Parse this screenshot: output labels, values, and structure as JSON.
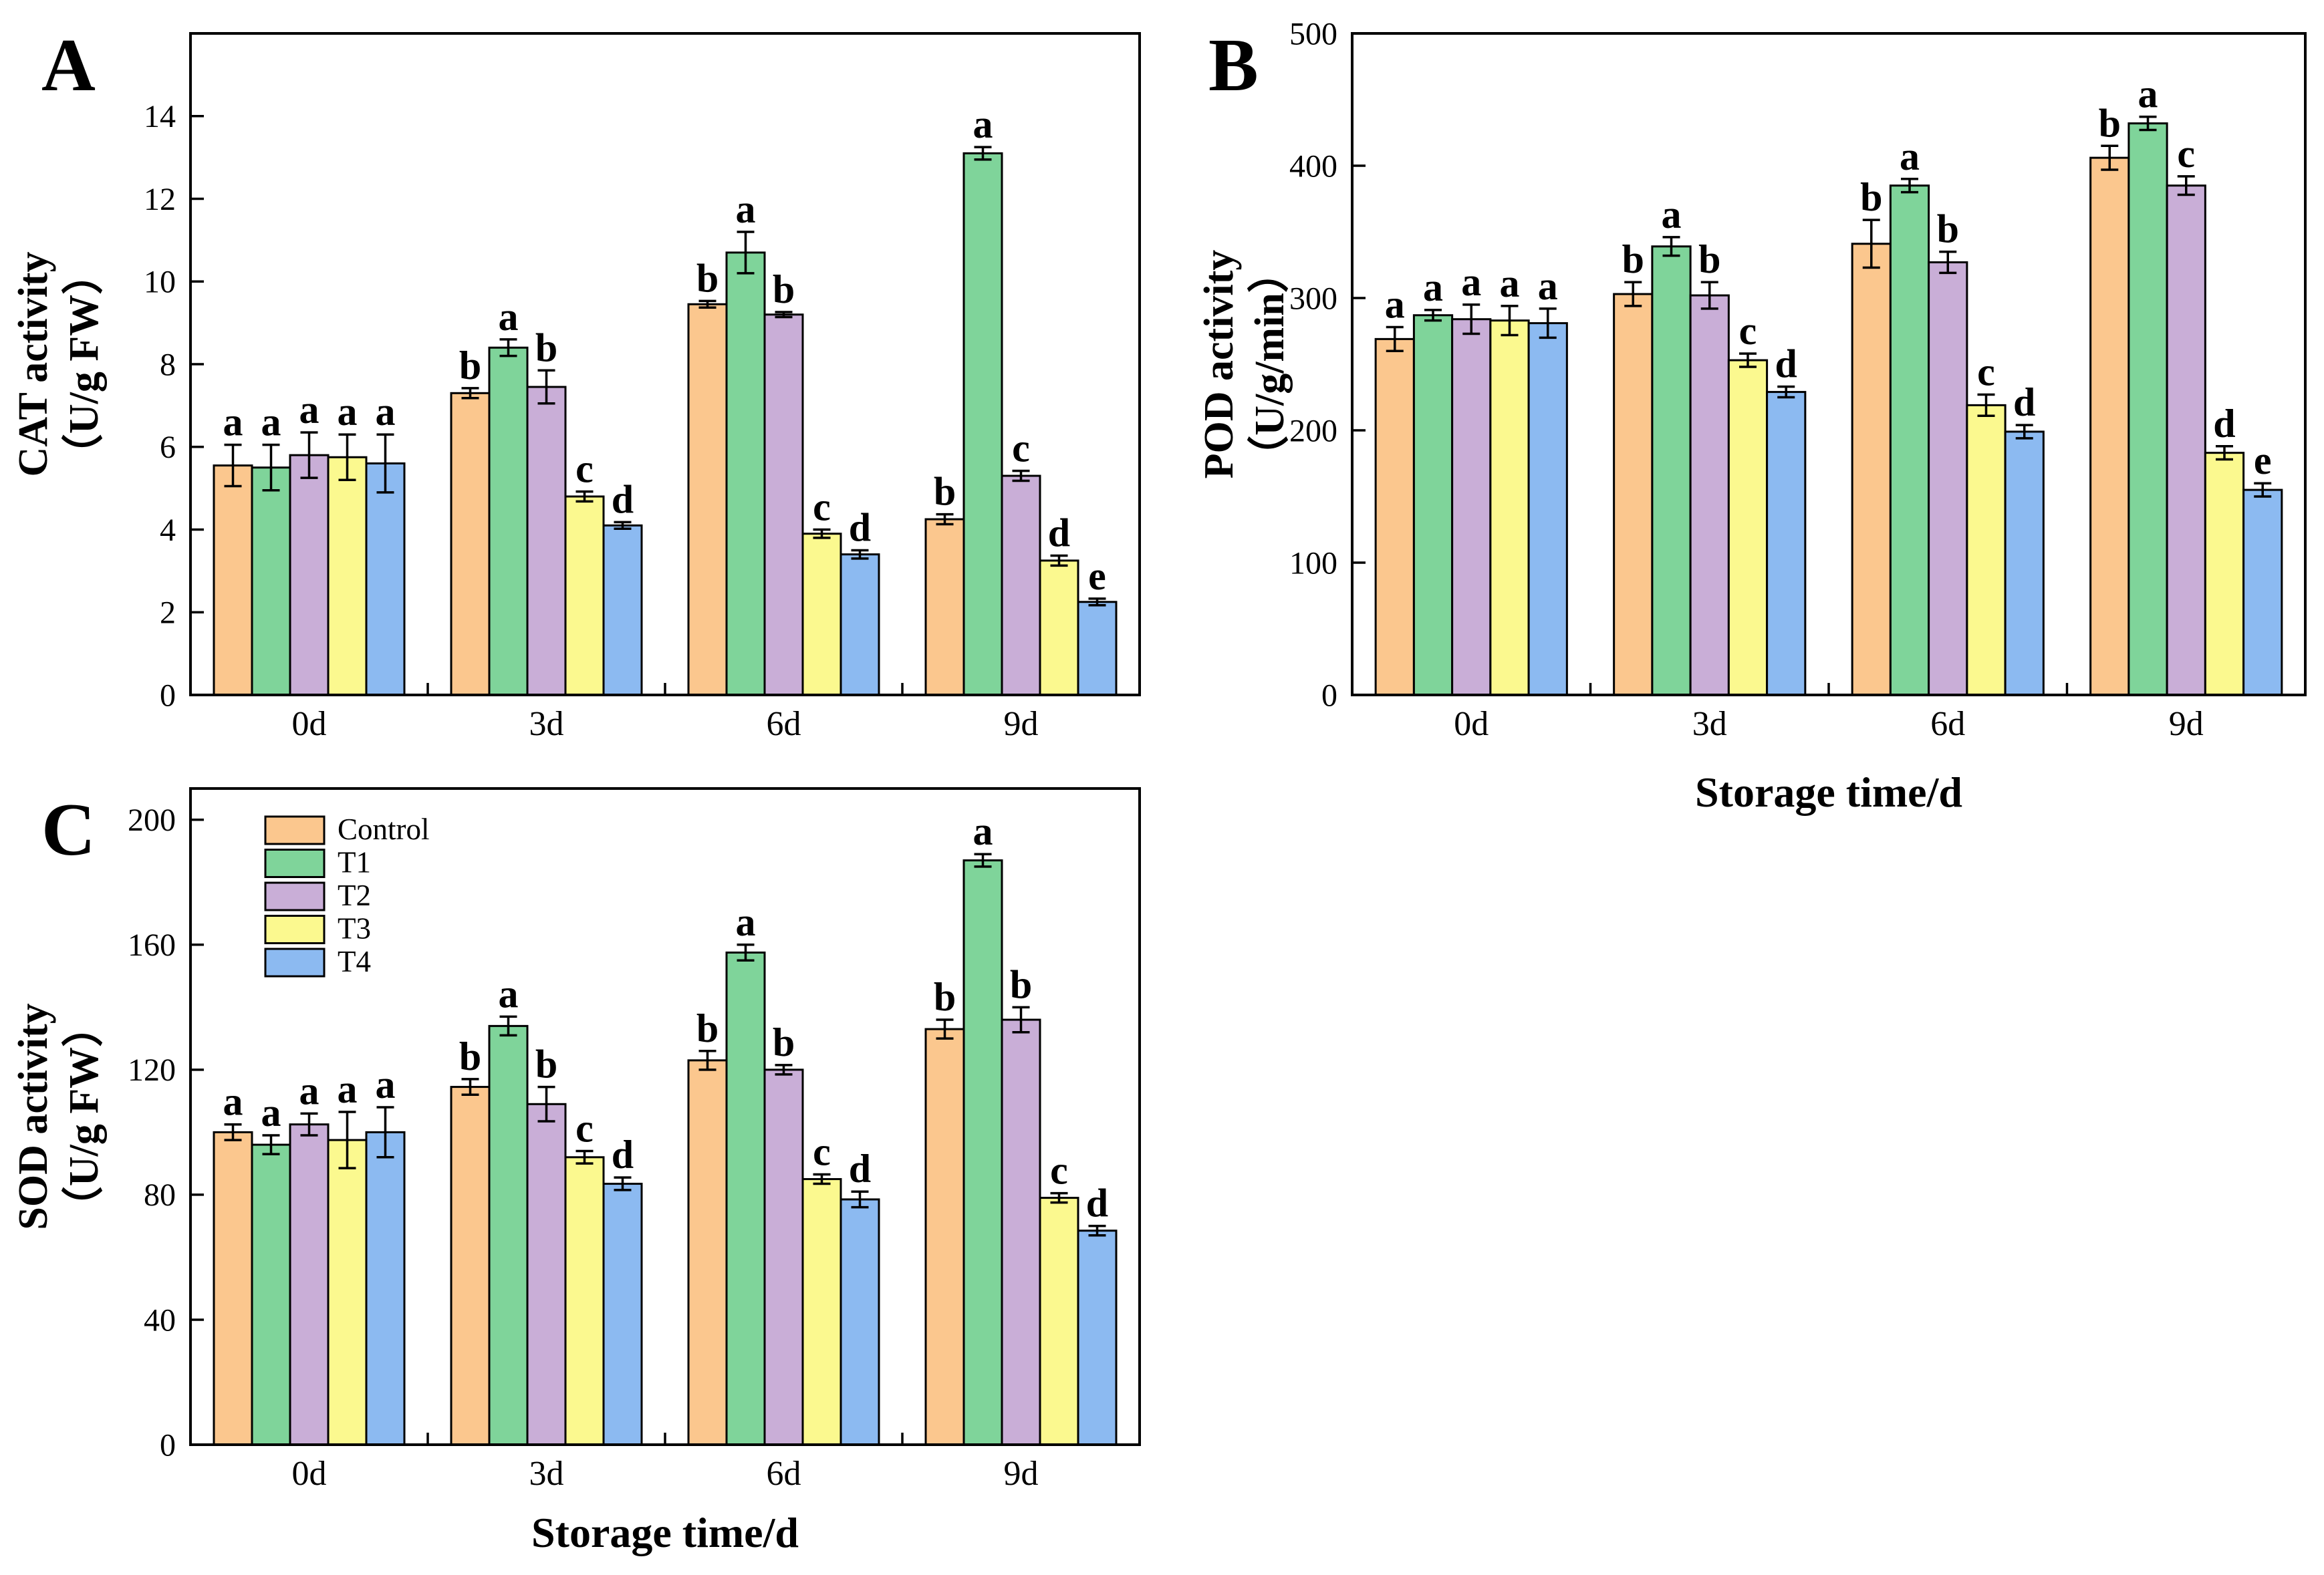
{
  "figure": {
    "background": "#ffffff",
    "ink_color": "#000000"
  },
  "legend": {
    "position": "top-left-of-panel-C",
    "items": [
      {
        "label": "Control",
        "color": "#FBC78E"
      },
      {
        "label": "T1",
        "color": "#7FD49A"
      },
      {
        "label": "T2",
        "color": "#C9AED7"
      },
      {
        "label": "T3",
        "color": "#FBF98F"
      },
      {
        "label": "T4",
        "color": "#8CBAF1"
      }
    ]
  },
  "chart_data": [
    {
      "type": "bar",
      "panel_label": "A",
      "ylabel_lines": [
        "CAT activity",
        "（U/g FW）"
      ],
      "xlabel": "",
      "categories": [
        "0d",
        "3d",
        "6d",
        "9d"
      ],
      "ylim": [
        0,
        16
      ],
      "yticks": [
        0,
        2,
        4,
        6,
        8,
        10,
        12,
        14
      ],
      "grid": false,
      "error_bars": true,
      "series": [
        {
          "name": "Control",
          "values": [
            5.55,
            7.3,
            9.45,
            4.25
          ],
          "errors": [
            0.5,
            0.12,
            0.08,
            0.12
          ],
          "letters": [
            "a",
            "b",
            "b",
            "b"
          ]
        },
        {
          "name": "T1",
          "values": [
            5.5,
            8.4,
            10.7,
            13.1
          ],
          "errors": [
            0.55,
            0.2,
            0.5,
            0.15
          ],
          "letters": [
            "a",
            "a",
            "a",
            "a"
          ]
        },
        {
          "name": "T2",
          "values": [
            5.8,
            7.45,
            9.2,
            5.3
          ],
          "errors": [
            0.55,
            0.4,
            0.06,
            0.12
          ],
          "letters": [
            "a",
            "b",
            "b",
            "c"
          ]
        },
        {
          "name": "T3",
          "values": [
            5.75,
            4.8,
            3.9,
            3.25
          ],
          "errors": [
            0.55,
            0.12,
            0.1,
            0.12
          ],
          "letters": [
            "a",
            "c",
            "c",
            "d"
          ]
        },
        {
          "name": "T4",
          "values": [
            5.6,
            4.1,
            3.4,
            2.25
          ],
          "errors": [
            0.7,
            0.08,
            0.1,
            0.08
          ],
          "letters": [
            "a",
            "d",
            "d",
            "e"
          ]
        }
      ]
    },
    {
      "type": "bar",
      "panel_label": "B",
      "ylabel_lines": [
        "POD activity",
        "（U/g/min）"
      ],
      "xlabel": "Storage time/d",
      "categories": [
        "0d",
        "3d",
        "6d",
        "9d"
      ],
      "ylim": [
        0,
        500
      ],
      "yticks": [
        0,
        100,
        200,
        300,
        400,
        500
      ],
      "grid": false,
      "error_bars": true,
      "series": [
        {
          "name": "Control",
          "values": [
            269,
            303,
            341,
            406
          ],
          "errors": [
            9,
            9,
            18,
            9
          ],
          "letters": [
            "a",
            "b",
            "b",
            "b"
          ]
        },
        {
          "name": "T1",
          "values": [
            287,
            339,
            385,
            432
          ],
          "errors": [
            4,
            7,
            5,
            5
          ],
          "letters": [
            "a",
            "a",
            "a",
            "a"
          ]
        },
        {
          "name": "T2",
          "values": [
            284,
            302,
            327,
            385
          ],
          "errors": [
            11,
            10,
            8,
            7
          ],
          "letters": [
            "a",
            "b",
            "b",
            "c"
          ]
        },
        {
          "name": "T3",
          "values": [
            283,
            253,
            219,
            183
          ],
          "errors": [
            11,
            5,
            8,
            5
          ],
          "letters": [
            "a",
            "c",
            "c",
            "d"
          ]
        },
        {
          "name": "T4",
          "values": [
            281,
            229,
            199,
            155
          ],
          "errors": [
            11,
            4,
            5,
            5
          ],
          "letters": [
            "a",
            "d",
            "d",
            "e"
          ]
        }
      ]
    },
    {
      "type": "bar",
      "panel_label": "C",
      "ylabel_lines": [
        "SOD activity",
        "（U/g FW）"
      ],
      "xlabel": "Storage time/d",
      "categories": [
        "0d",
        "3d",
        "6d",
        "9d"
      ],
      "ylim": [
        0,
        210
      ],
      "yticks": [
        0,
        40,
        80,
        120,
        160,
        200
      ],
      "grid": false,
      "error_bars": true,
      "show_legend": true,
      "series": [
        {
          "name": "Control",
          "values": [
            100,
            114.5,
            123,
            133
          ],
          "errors": [
            2.5,
            2.5,
            3,
            3
          ],
          "letters": [
            "a",
            "b",
            "b",
            "b"
          ]
        },
        {
          "name": "T1",
          "values": [
            96,
            134,
            157.5,
            187
          ],
          "errors": [
            3,
            3,
            2.5,
            2
          ],
          "letters": [
            "a",
            "a",
            "a",
            "a"
          ]
        },
        {
          "name": "T2",
          "values": [
            102.5,
            109,
            120,
            136
          ],
          "errors": [
            3.5,
            5.5,
            1.5,
            4
          ],
          "letters": [
            "a",
            "b",
            "b",
            "b"
          ]
        },
        {
          "name": "T3",
          "values": [
            97.5,
            92,
            85,
            79
          ],
          "errors": [
            9,
            2,
            1.5,
            1.5
          ],
          "letters": [
            "a",
            "c",
            "c",
            "c"
          ]
        },
        {
          "name": "T4",
          "values": [
            100,
            83.5,
            78.5,
            68.5
          ],
          "errors": [
            8,
            2,
            2.5,
            1.5
          ],
          "letters": [
            "a",
            "d",
            "d",
            "d"
          ]
        }
      ]
    }
  ]
}
